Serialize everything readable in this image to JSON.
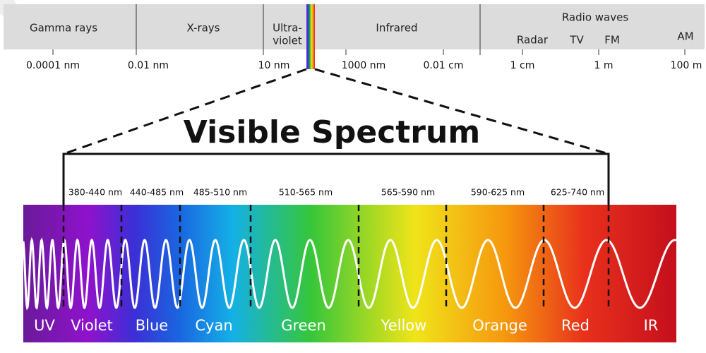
{
  "spectrum": {
    "bands": [
      "Gamma rays",
      "X-rays",
      "Infrared",
      "Radio waves"
    ],
    "ultraviolet_lines": [
      "Ultra-",
      "violet"
    ],
    "radio_subbands": [
      "Radar",
      "TV",
      "FM",
      "AM"
    ],
    "scale": [
      "0.0001 nm",
      "0.01 nm",
      "10 nm",
      "1000 nm",
      "0.01 cm",
      "1 cm",
      "1 m",
      "100 m"
    ]
  },
  "visible": {
    "title": "Visible Spectrum",
    "ranges": [
      "380-440 nm",
      "440-485 nm",
      "485-510 nm",
      "510-565 nm",
      "565-590 nm",
      "590-625 nm",
      "625-740 nm"
    ],
    "colors": [
      "UV",
      "Violet",
      "Blue",
      "Cyan",
      "Green",
      "Yellow",
      "Orange",
      "Red",
      "IR"
    ]
  }
}
